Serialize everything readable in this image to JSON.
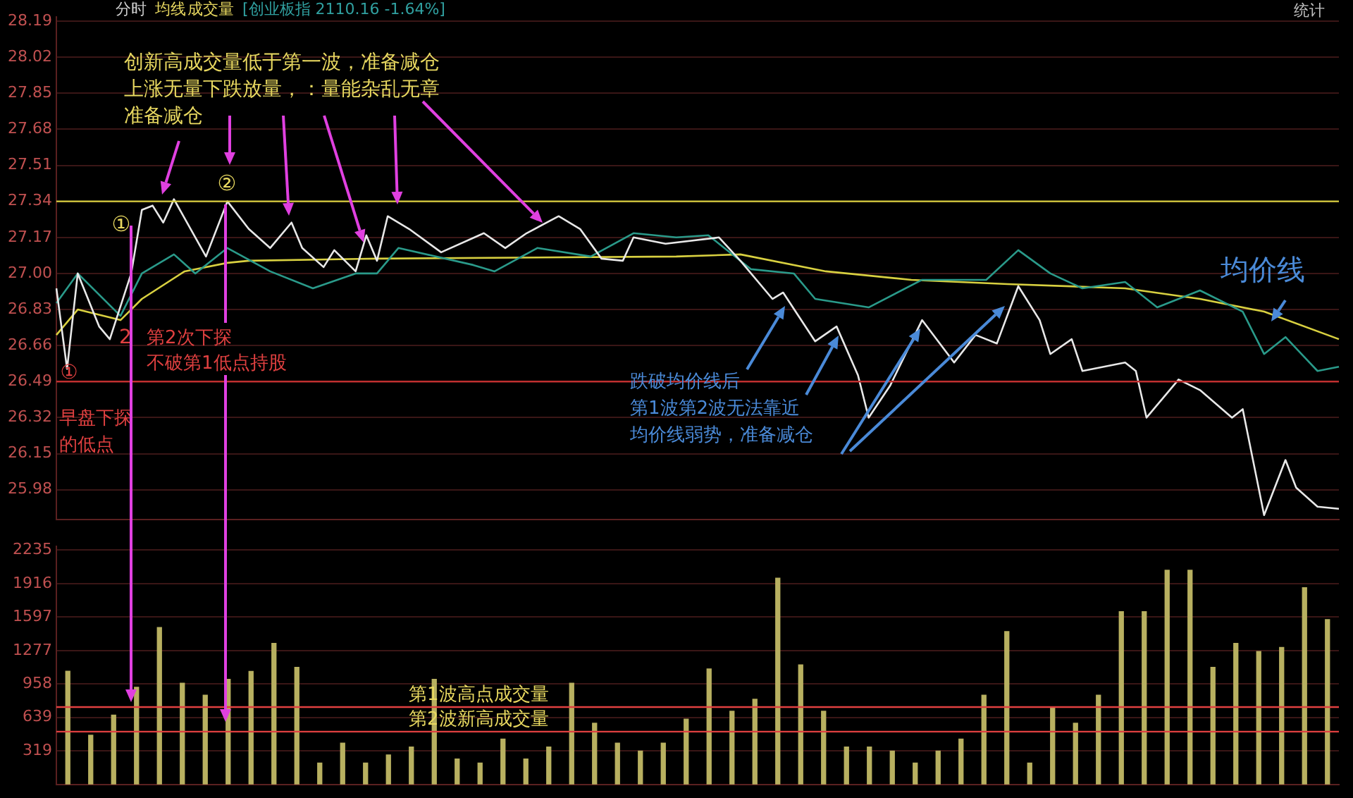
{
  "chart_data": [
    {
      "type": "line",
      "categories": [
        null,
        null,
        null,
        null,
        null,
        null,
        null,
        null,
        null,
        null,
        null,
        null,
        null,
        null,
        null,
        null,
        null,
        null,
        null,
        null,
        null,
        null,
        null,
        null,
        null,
        null,
        null,
        null,
        null,
        null,
        null,
        null,
        null,
        null,
        null,
        null,
        null,
        null,
        null,
        null,
        null,
        null,
        null,
        null,
        null,
        null,
        null,
        null,
        null,
        null,
        null,
        null,
        null,
        null,
        null,
        null,
        null,
        null,
        null,
        null,
        null,
        null,
        null,
        null,
        null,
        null,
        null,
        null,
        null,
        null,
        null,
        null,
        null,
        null,
        null,
        null,
        null,
        null,
        null,
        null,
        null,
        null,
        null,
        null,
        null,
        null,
        null,
        null,
        null,
        null,
        null,
        null,
        null,
        null,
        null,
        null,
        null,
        null,
        null,
        null,
        null,
        null,
        null,
        null,
        null,
        null,
        null,
        null,
        null,
        null,
        null,
        null,
        null,
        null,
        null,
        null,
        null,
        null,
        null,
        null,
        null
      ],
      "ylim": [
        25.84,
        28.21
      ],
      "yticks": [
        25.98,
        26.15,
        26.32,
        26.49,
        26.66,
        26.83,
        {
          "value": 27,
          "label": "27.00"
        },
        27.17,
        27.34,
        27.51,
        27.68,
        27.85,
        28.02,
        28.19
      ],
      "tick_labels": "y",
      "grid": "y",
      "legend": false,
      "marker": "none",
      "line_style": "solid",
      "series": [
        {
          "color": "#e8e8e8",
          "values": [
            26.93,
            26.55,
            27.0,
            null,
            26.75,
            26.69,
            null,
            27.0,
            27.3,
            27.32,
            27.24,
            27.35,
            null,
            null,
            27.08,
            null,
            27.34,
            null,
            27.21,
            null,
            27.12,
            null,
            27.24,
            27.12,
            null,
            27.03,
            27.11,
            null,
            27.01,
            27.18,
            27.06,
            27.27,
            null,
            27.21,
            null,
            null,
            27.1,
            null,
            null,
            null,
            27.19,
            null,
            27.12,
            null,
            27.19,
            null,
            null,
            27.27,
            null,
            27.21,
            null,
            27.07,
            null,
            27.06,
            27.17,
            null,
            null,
            27.14,
            null,
            null,
            null,
            null,
            27.17,
            null,
            27.06,
            null,
            null,
            26.88,
            26.91,
            null,
            null,
            26.68,
            null,
            26.75,
            null,
            26.52,
            26.32,
            null,
            26.47,
            null,
            null,
            26.78,
            null,
            null,
            26.58,
            null,
            26.71,
            null,
            26.67,
            null,
            26.94,
            null,
            26.78,
            26.62,
            null,
            26.69,
            26.54,
            null,
            null,
            null,
            26.58,
            26.54,
            26.32,
            null,
            null,
            26.5,
            null,
            26.45,
            null,
            null,
            26.32,
            26.36,
            null,
            25.86,
            null,
            26.12,
            25.99,
            null,
            25.9,
            null,
            25.89
          ]
        },
        {
          "color": "#2a9a8a",
          "values": [
            26.86,
            null,
            27.0,
            null,
            null,
            null,
            26.8,
            null,
            27.0,
            null,
            null,
            27.09,
            null,
            27.0,
            null,
            null,
            27.12,
            null,
            null,
            null,
            27.01,
            null,
            null,
            null,
            26.93,
            null,
            null,
            null,
            27.0,
            null,
            27.0,
            null,
            27.12,
            null,
            null,
            null,
            null,
            null,
            null,
            27.04,
            null,
            27.01,
            null,
            null,
            null,
            27.12,
            null,
            null,
            null,
            null,
            27.08,
            null,
            null,
            null,
            27.19,
            null,
            null,
            null,
            27.17,
            null,
            null,
            27.18,
            null,
            null,
            null,
            27.02,
            null,
            null,
            null,
            27.0,
            null,
            26.88,
            null,
            null,
            null,
            null,
            26.84,
            null,
            null,
            null,
            null,
            26.97,
            null,
            null,
            null,
            null,
            null,
            26.97,
            null,
            null,
            27.11,
            null,
            null,
            27.0,
            null,
            null,
            26.93,
            null,
            null,
            null,
            26.96,
            null,
            null,
            26.84,
            null,
            null,
            null,
            26.92,
            null,
            null,
            null,
            26.82,
            null,
            26.62,
            null,
            26.7,
            null,
            null,
            26.54,
            null,
            26.56
          ]
        },
        {
          "color": "#d8d040",
          "values": [
            26.71,
            null,
            26.83,
            null,
            null,
            null,
            26.78,
            null,
            26.88,
            null,
            null,
            null,
            27.01,
            null,
            null,
            null,
            27.05,
            null,
            27.06,
            null,
            null,
            null,
            null,
            null,
            null,
            null,
            null,
            null,
            null,
            null,
            27.07,
            null,
            null,
            null,
            null,
            null,
            null,
            null,
            null,
            null,
            null,
            null,
            null,
            null,
            null,
            null,
            null,
            null,
            null,
            null,
            null,
            null,
            null,
            null,
            null,
            null,
            null,
            null,
            27.08,
            null,
            null,
            null,
            null,
            null,
            27.09,
            null,
            null,
            null,
            null,
            null,
            null,
            null,
            27.01,
            null,
            null,
            null,
            null,
            null,
            null,
            null,
            26.97,
            null,
            null,
            null,
            null,
            null,
            null,
            null,
            null,
            26.95,
            null,
            null,
            null,
            null,
            null,
            null,
            null,
            null,
            null,
            null,
            26.93,
            null,
            null,
            null,
            null,
            null,
            null,
            26.88,
            null,
            null,
            null,
            null,
            null,
            26.82,
            null,
            null,
            null,
            null,
            null,
            null,
            26.69
          ]
        }
      ],
      "ref_lines": [
        {
          "axis": "y",
          "value": 27.34,
          "color": "#d8d040"
        },
        {
          "axis": "y",
          "value": 26.49,
          "color": "#c03030"
        }
      ],
      "annotations": [
        "分时",
        "均线",
        "成交量",
        "[创业板指 2110.16 -1.64%]",
        "统计",
        "创新高成交量低于第一波，准备减仓",
        "上涨无量下跌放量，：量能杂乱无章",
        "准备减仓",
        "①",
        "②",
        "①",
        "2",
        "第2次下探",
        "不破第1低点持股",
        "早盘下探",
        "的低点",
        "跌破均价线后",
        "第1波第2波无法靠近",
        "均价线弱势，准备减仓",
        "均价线"
      ]
    },
    {
      "type": "bar",
      "categories": [
        null,
        null,
        null,
        null,
        null,
        null,
        null,
        null,
        null,
        null,
        null,
        null,
        null,
        null,
        null,
        null,
        null,
        null,
        null,
        null,
        null,
        null,
        null,
        null,
        null,
        null,
        null,
        null,
        null,
        null,
        null,
        null,
        null,
        null,
        null,
        null,
        null,
        null,
        null,
        null,
        null,
        null,
        null,
        null,
        null,
        null,
        null,
        null,
        null,
        null,
        null,
        null,
        null,
        null,
        null,
        null
      ],
      "ylim": [
        0,
        2270
      ],
      "yticks": [
        319,
        639,
        958,
        1277,
        1597,
        1916,
        2235
      ],
      "tick_labels": "y",
      "grid": "y",
      "legend": false,
      "series": [
        {
          "color": "#b8b060",
          "values": [
            1080,
            470,
            661,
            927,
            1497,
            965,
            851,
            1003,
            1079,
            1345,
            1117,
            205,
            395,
            205,
            281,
            357,
            1003,
            243,
            205,
            433,
            243,
            357,
            965,
            585,
            395,
            319,
            395,
            623,
            1102,
            699,
            813,
            1968,
            1140,
            699,
            357,
            357,
            319,
            205,
            319,
            433,
            851,
            1459,
            205,
            737,
            585,
            851,
            1649,
            1649,
            2044,
            2044,
            1117,
            1345,
            1269,
            1307,
            1877,
            1573
          ]
        }
      ],
      "ref_lines": [
        {
          "axis": "y",
          "value": 738,
          "label": "第1波高点成交量",
          "color": "#e04040"
        },
        {
          "axis": "y",
          "value": 504,
          "label": "第2波新高成交量",
          "color": "#e04040"
        }
      ]
    }
  ]
}
